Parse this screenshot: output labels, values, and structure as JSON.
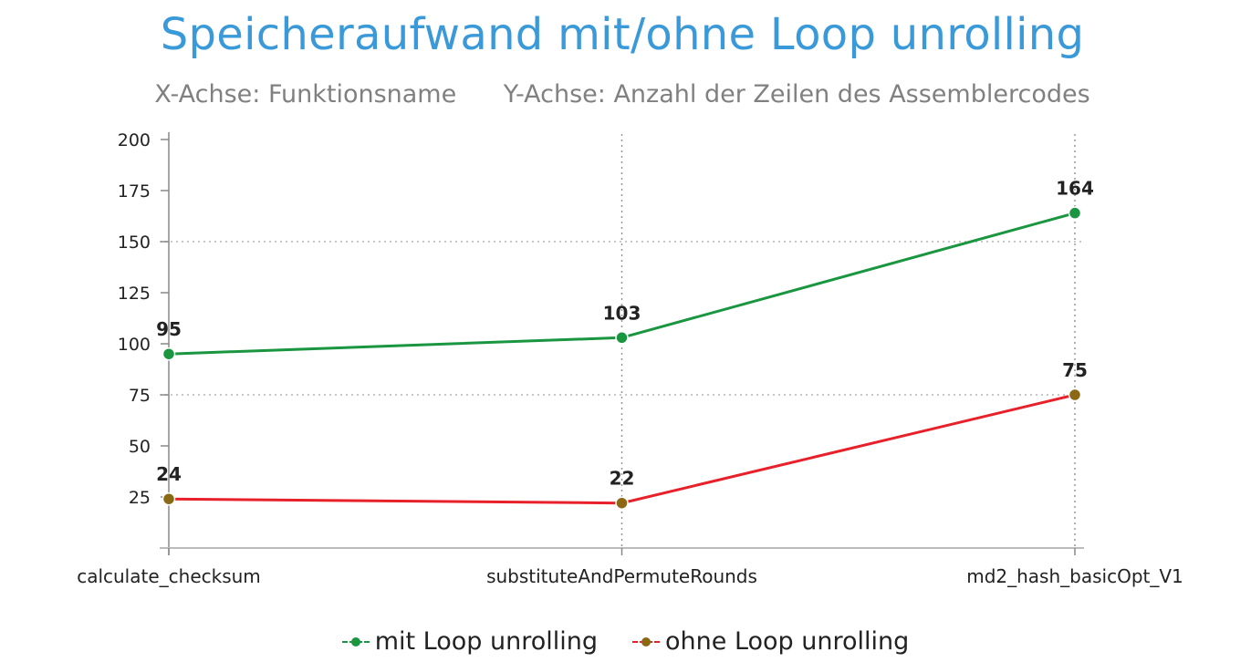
{
  "chart_data": {
    "type": "line",
    "title": "Speicheraufwand mit/ohne Loop unrolling",
    "subtitle": "X-Achse: Funktionsname      Y-Achse: Anzahl der Zeilen des Assemblercodes",
    "categories": [
      "calculate_checksum",
      "substituteAndPermuteRounds",
      "md2_hash_basicOpt_V1"
    ],
    "ylim": [
      0,
      200
    ],
    "yticks": [
      25,
      50,
      75,
      100,
      125,
      150,
      175,
      200
    ],
    "grid": "dotted, y at 75 and 150; vertical at categories",
    "legend_position": "bottom",
    "series": [
      {
        "name": "mit Loop unrolling",
        "values": [
          95,
          103,
          164
        ],
        "line_color": "#1a9641",
        "marker_color": "#1a9641"
      },
      {
        "name": "ohne Loop unrolling",
        "values": [
          24,
          22,
          75
        ],
        "line_color": "#e8202a",
        "marker_color": "#8b6914"
      }
    ]
  }
}
